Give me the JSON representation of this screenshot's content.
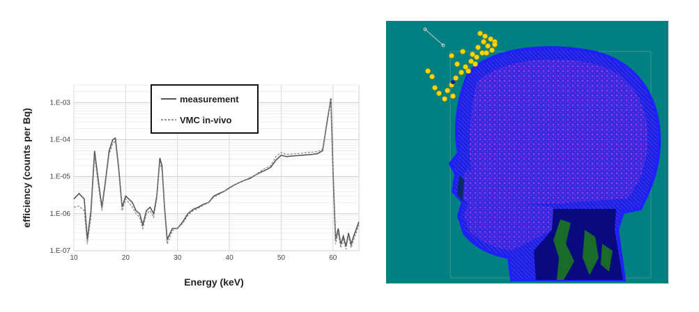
{
  "chart_data": {
    "type": "line",
    "xlabel": "Energy (keV)",
    "ylabel": "efficiency (counts per Bq)",
    "xlim": [
      10,
      65
    ],
    "ylim": [
      1e-07,
      0.003
    ],
    "yscale": "log",
    "grid": true,
    "legend_position": "top-center",
    "x_ticks": [
      "10",
      "20",
      "30",
      "40",
      "50",
      "60"
    ],
    "x_tick_values": [
      10,
      20,
      30,
      40,
      50,
      60
    ],
    "y_ticks": [
      "1.E-07",
      "1.E-06",
      "1.E-05",
      "1.E-04",
      "1.E-03"
    ],
    "y_tick_values": [
      1e-07,
      1e-06,
      1e-05,
      0.0001,
      0.001
    ],
    "series": [
      {
        "name": "measurement",
        "style": "solid",
        "color": "#555555",
        "x": [
          10,
          11,
          12,
          12.6,
          13.3,
          14,
          14.7,
          15.4,
          16,
          16.8,
          17.5,
          18,
          18.6,
          19.3,
          20,
          20.6,
          21.3,
          22,
          22.7,
          23.3,
          24,
          24.7,
          25.4,
          26,
          26.6,
          27,
          27.5,
          28,
          29,
          30,
          31,
          32,
          33,
          34,
          35,
          36,
          37,
          38,
          39,
          40,
          41,
          42,
          43,
          44,
          45,
          46,
          47,
          48,
          49,
          50,
          51,
          52,
          53,
          54,
          55,
          56,
          57,
          58,
          59,
          59.6,
          60,
          60.5,
          61,
          61.5,
          62,
          62.5,
          63,
          63.5,
          64,
          65
        ],
        "y": [
          2.5e-06,
          3.5e-06,
          2.5e-06,
          2e-07,
          1.2e-06,
          5e-05,
          8e-06,
          1.5e-06,
          6e-06,
          5e-05,
          0.0001,
          0.00011,
          2e-05,
          1.5e-06,
          3e-06,
          2.5e-06,
          2e-06,
          1.2e-06,
          1e-06,
          5e-07,
          1.2e-06,
          1.5e-06,
          1e-06,
          3e-06,
          3.2e-05,
          2e-05,
          1.5e-06,
          2e-07,
          4e-07,
          4e-07,
          6e-07,
          1e-06,
          1.3e-06,
          1.5e-06,
          1.8e-06,
          2e-06,
          3e-06,
          3.5e-06,
          4e-06,
          5e-06,
          6e-06,
          7e-06,
          8e-06,
          9e-06,
          1.1e-05,
          1.3e-05,
          1.5e-05,
          1.8e-05,
          2.8e-05,
          3.8e-05,
          3.5e-05,
          3.6e-05,
          3.7e-05,
          3.8e-05,
          3.9e-05,
          4e-05,
          4.2e-05,
          5e-05,
          0.0004,
          0.0013,
          1.5e-05,
          2e-07,
          4e-07,
          1.5e-07,
          2.5e-07,
          1.3e-07,
          3e-07,
          1.5e-07,
          2.5e-07,
          6e-07
        ]
      },
      {
        "name": "VMC in-vivo",
        "style": "dashed",
        "color": "#888888",
        "x": [
          10,
          11,
          12,
          12.6,
          13.3,
          14,
          14.7,
          15.4,
          16,
          16.8,
          17.5,
          18,
          18.6,
          19.3,
          20,
          20.6,
          21.3,
          22,
          22.7,
          23.3,
          24,
          24.7,
          25.4,
          26,
          26.6,
          27,
          27.5,
          28,
          29,
          30,
          31,
          32,
          33,
          34,
          35,
          36,
          37,
          38,
          39,
          40,
          41,
          42,
          43,
          44,
          45,
          46,
          47,
          48,
          49,
          50,
          51,
          52,
          53,
          54,
          55,
          56,
          57,
          58,
          59,
          59.6,
          60,
          60.5,
          61,
          61.5,
          62,
          62.5,
          63,
          63.5,
          64,
          65
        ],
        "y": [
          1.5e-06,
          1.6e-06,
          1.2e-06,
          1.5e-07,
          8e-07,
          3.5e-05,
          6e-06,
          1.2e-06,
          5e-06,
          4e-05,
          8e-05,
          9e-05,
          1.6e-05,
          1.2e-06,
          2.5e-06,
          2e-06,
          1.5e-06,
          1e-06,
          8e-07,
          4e-07,
          1e-06,
          1.2e-06,
          8e-07,
          2.5e-06,
          2.5e-05,
          1.5e-05,
          1.2e-06,
          1.5e-07,
          3.5e-07,
          4e-07,
          5.5e-07,
          9e-07,
          1.2e-06,
          1.4e-06,
          1.7e-06,
          2e-06,
          2.8e-06,
          3.3e-06,
          4e-06,
          4.8e-06,
          6e-06,
          7e-06,
          8e-06,
          9.5e-06,
          1.1e-05,
          1.4e-05,
          1.7e-05,
          2e-05,
          3.5e-05,
          4.5e-05,
          4e-05,
          4.1e-05,
          4.2e-05,
          4.3e-05,
          4.5e-05,
          4.6e-05,
          4.8e-05,
          5.5e-05,
          0.00045,
          0.0012,
          1.2e-05,
          1.5e-07,
          3e-07,
          1.2e-07,
          2e-07,
          1.1e-07,
          2.5e-07,
          1.2e-07,
          2e-07,
          5e-07
        ]
      }
    ]
  },
  "simulation_image": {
    "description_icon": "head-phantom-icon",
    "background_color": "#008080",
    "head_color": "#2a2aee",
    "marker_color": "#ffd700"
  }
}
